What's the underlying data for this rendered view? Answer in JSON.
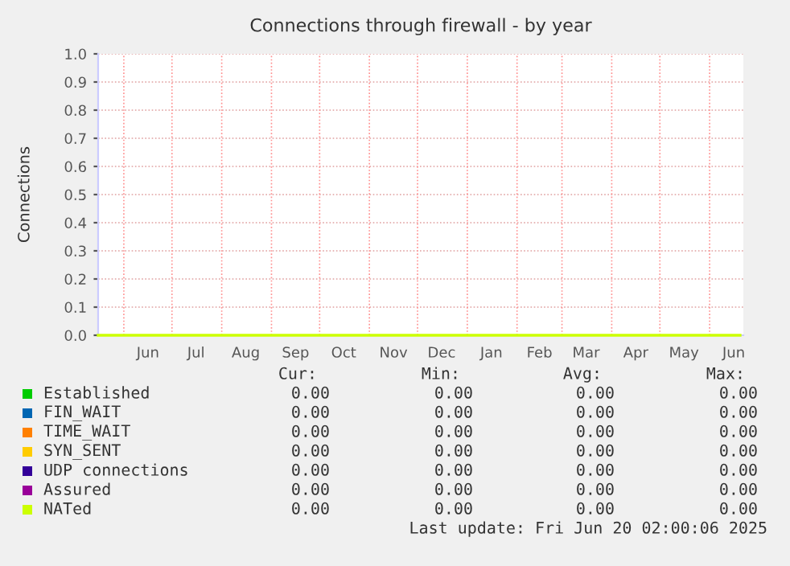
{
  "chart_data": {
    "type": "line",
    "title": "Connections through firewall - by year",
    "ylabel": "Connections",
    "xlim": [
      "2024-05-16",
      "2025-06-22"
    ],
    "ylim": [
      0,
      1
    ],
    "yticks": [
      {
        "value": 0,
        "label": "0.0"
      },
      {
        "value": 0.1,
        "label": "0.1"
      },
      {
        "value": 0.2,
        "label": "0.2"
      },
      {
        "value": 0.3,
        "label": "0.3"
      },
      {
        "value": 0.4,
        "label": "0.4"
      },
      {
        "value": 0.5,
        "label": "0.5"
      },
      {
        "value": 0.6,
        "label": "0.6"
      },
      {
        "value": 0.7,
        "label": "0.7"
      },
      {
        "value": 0.8,
        "label": "0.8"
      },
      {
        "value": 0.9,
        "label": "0.9"
      },
      {
        "value": 1,
        "label": "1.0"
      }
    ],
    "xticks": [
      {
        "value": "2024-06-01",
        "label": null
      },
      {
        "value": "2024-06-16",
        "label": "Jun"
      },
      {
        "value": "2024-07-01",
        "label": null
      },
      {
        "value": "2024-07-16",
        "label": "Jul"
      },
      {
        "value": "2024-08-01",
        "label": null
      },
      {
        "value": "2024-08-16",
        "label": "Aug"
      },
      {
        "value": "2024-09-01",
        "label": null
      },
      {
        "value": "2024-09-16",
        "label": "Sep"
      },
      {
        "value": "2024-10-01",
        "label": null
      },
      {
        "value": "2024-10-16",
        "label": "Oct"
      },
      {
        "value": "2024-11-01",
        "label": null
      },
      {
        "value": "2024-11-16",
        "label": "Nov"
      },
      {
        "value": "2024-12-01",
        "label": null
      },
      {
        "value": "2024-12-16",
        "label": "Dec"
      },
      {
        "value": "2025-01-01",
        "label": null
      },
      {
        "value": "2025-01-16",
        "label": "Jan"
      },
      {
        "value": "2025-02-01",
        "label": null
      },
      {
        "value": "2025-02-15",
        "label": "Feb"
      },
      {
        "value": "2025-03-01",
        "label": null
      },
      {
        "value": "2025-03-16",
        "label": "Mar"
      },
      {
        "value": "2025-04-01",
        "label": null
      },
      {
        "value": "2025-04-16",
        "label": "Apr"
      },
      {
        "value": "2025-05-01",
        "label": null
      },
      {
        "value": "2025-05-16",
        "label": "May"
      },
      {
        "value": "2025-06-01",
        "label": null
      },
      {
        "value": "2025-06-16",
        "label": "Jun"
      }
    ],
    "grid": true,
    "legend": "bottom",
    "x": [
      "2024-05-16",
      "2025-06-20"
    ],
    "series": [
      {
        "name": "Established",
        "color": "#00cc00",
        "values": [
          null,
          null
        ]
      },
      {
        "name": "FIN_WAIT",
        "color": "#0066b3",
        "values": [
          null,
          null
        ]
      },
      {
        "name": "TIME_WAIT",
        "color": "#ff8000",
        "values": [
          null,
          null
        ]
      },
      {
        "name": "SYN_SENT",
        "color": "#ffcc00",
        "values": [
          null,
          null
        ]
      },
      {
        "name": "UDP connections",
        "color": "#330099",
        "values": [
          null,
          null
        ]
      },
      {
        "name": "Assured",
        "color": "#990099",
        "values": [
          null,
          null
        ]
      },
      {
        "name": "NATed",
        "color": "#ccff00",
        "values": [
          0,
          0
        ]
      }
    ],
    "annotations": [
      "Cur:",
      "Min:",
      "Avg:",
      "Max:",
      "0.00",
      "0.00",
      "0.00",
      "0.00",
      "0.00",
      "0.00",
      "0.00",
      "0.00",
      "0.00",
      "0.00",
      "0.00",
      "0.00",
      "0.00",
      "0.00",
      "0.00",
      "0.00",
      "0.00",
      "0.00",
      "0.00",
      "0.00",
      "0.00",
      "0.00",
      "0.00",
      "0.00",
      "0.00",
      "0.00",
      "0.00",
      "0.00",
      "Last update: Fri Jun 20 02:00:06 2025"
    ]
  }
}
